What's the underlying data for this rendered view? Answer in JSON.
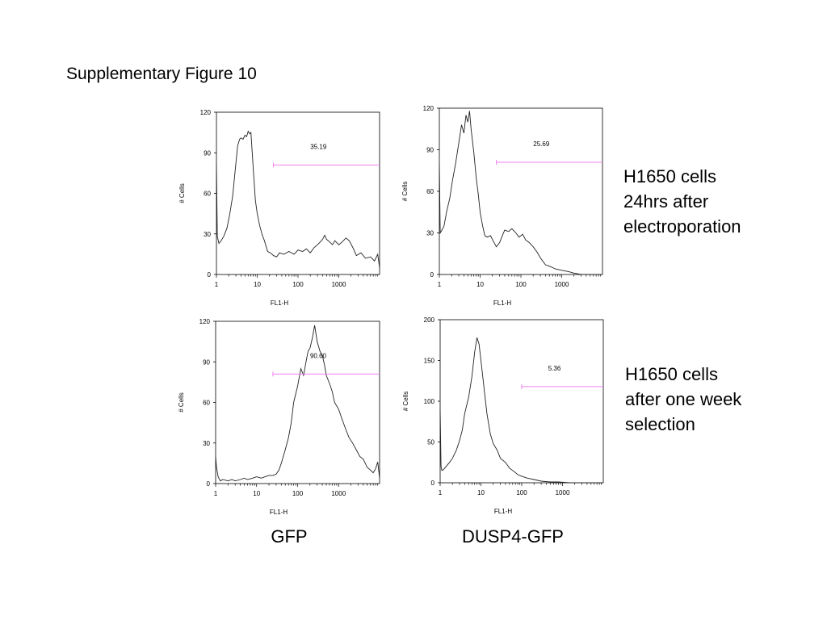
{
  "figure_title": "Supplementary Figure 10",
  "row_labels": [
    [
      "H1650 cells",
      "24hrs after",
      "electroporation"
    ],
    [
      "H1650 cells",
      "after one week",
      "selection"
    ]
  ],
  "column_labels": [
    "GFP",
    "DUSP4-GFP"
  ],
  "colors": {
    "line": "#222222",
    "gate": "#f080f0",
    "frame": "#000000"
  },
  "chart_data": [
    {
      "type": "line",
      "panel": "GFP, 24hrs after electroporation",
      "xlabel": "FL1-H",
      "ylabel": "# Cells",
      "xscale": "log",
      "xlim": [
        1,
        10000
      ],
      "ylim": [
        0,
        120
      ],
      "xticks": [
        1,
        10,
        100,
        1000
      ],
      "yticks": [
        0,
        30,
        60,
        90,
        120
      ],
      "gate": {
        "label": "35.19",
        "x_range": [
          25,
          10000
        ],
        "y": 81
      },
      "x": [
        1,
        1.05,
        1.15,
        1.3,
        1.5,
        1.8,
        2.1,
        2.5,
        2.9,
        3.3,
        3.7,
        4,
        4.5,
        5,
        5.5,
        6,
        6.5,
        7,
        8,
        9,
        10,
        11.5,
        13,
        15,
        18,
        21,
        25,
        30,
        35,
        45,
        60,
        80,
        100,
        130,
        160,
        200,
        250,
        300,
        350,
        400,
        450,
        500,
        600,
        700,
        800,
        1000,
        1200,
        1500,
        1800,
        2200,
        2700,
        3500,
        4500,
        6000,
        7500,
        9000,
        10000
      ],
      "y": [
        82,
        28,
        23,
        25,
        28,
        34,
        44,
        58,
        78,
        95,
        100,
        101,
        100,
        103,
        102,
        106,
        104,
        105,
        78,
        55,
        45,
        36,
        30,
        25,
        17,
        16,
        14,
        13,
        16,
        15,
        17,
        15,
        18,
        17,
        19,
        16,
        20,
        22,
        24,
        26,
        29,
        26,
        24,
        22,
        25,
        22,
        24,
        27,
        25,
        20,
        14,
        16,
        12,
        13,
        10,
        15,
        5
      ]
    },
    {
      "type": "line",
      "panel": "DUSP4-GFP, 24hrs after electroporation",
      "xlabel": "FL1-H",
      "ylabel": "# Cells",
      "xscale": "log",
      "xlim": [
        1,
        10000
      ],
      "ylim": [
        0,
        120
      ],
      "xticks": [
        1,
        10,
        100,
        1000
      ],
      "yticks": [
        0,
        30,
        60,
        90,
        120
      ],
      "gate": {
        "label": "25.69",
        "x_range": [
          25,
          10000
        ],
        "y": 81
      },
      "x": [
        1,
        1.05,
        1.15,
        1.3,
        1.5,
        1.8,
        2.1,
        2.5,
        3,
        3.5,
        4,
        4.5,
        5,
        5.5,
        6,
        7,
        8,
        9,
        10,
        11.5,
        13,
        15,
        18,
        21,
        25,
        30,
        35,
        40,
        50,
        60,
        75,
        90,
        110,
        130,
        160,
        200,
        250,
        300,
        400,
        500,
        700,
        1000,
        1500,
        2000,
        3000,
        4000,
        5000,
        7000,
        10000
      ],
      "y": [
        80,
        30,
        32,
        35,
        45,
        55,
        68,
        80,
        95,
        108,
        102,
        115,
        110,
        118,
        105,
        88,
        70,
        58,
        45,
        35,
        28,
        27,
        28,
        24,
        20,
        23,
        28,
        32,
        31,
        33,
        30,
        27,
        29,
        25,
        23,
        20,
        16,
        12,
        7,
        6,
        4,
        3,
        2,
        1,
        0,
        0,
        0,
        0,
        0
      ]
    },
    {
      "type": "line",
      "panel": "GFP, after one week selection",
      "xlabel": "FL1-H",
      "ylabel": "# Cells",
      "xscale": "log",
      "xlim": [
        1,
        10000
      ],
      "ylim": [
        0,
        120
      ],
      "xticks": [
        1,
        10,
        100,
        1000
      ],
      "yticks": [
        0,
        30,
        60,
        90,
        120
      ],
      "gate": {
        "label": "90.60",
        "x_range": [
          25,
          10000
        ],
        "y": 81
      },
      "x": [
        1,
        1.05,
        1.15,
        1.3,
        1.5,
        2,
        2.5,
        3,
        4,
        5,
        6,
        8,
        10,
        13,
        16,
        20,
        25,
        30,
        35,
        40,
        50,
        60,
        70,
        80,
        100,
        120,
        140,
        160,
        180,
        200,
        230,
        260,
        300,
        350,
        400,
        450,
        500,
        600,
        700,
        800,
        1000,
        1200,
        1500,
        1800,
        2200,
        2700,
        3300,
        4000,
        5000,
        6000,
        7000,
        8000,
        9000,
        10000
      ],
      "y": [
        20,
        12,
        5,
        2,
        3,
        2,
        3,
        2,
        3,
        4,
        3,
        4,
        5,
        4,
        5,
        6,
        6,
        7,
        10,
        15,
        25,
        34,
        45,
        60,
        72,
        85,
        80,
        90,
        98,
        100,
        108,
        117,
        105,
        98,
        95,
        88,
        80,
        74,
        68,
        60,
        55,
        48,
        40,
        34,
        30,
        25,
        20,
        18,
        12,
        10,
        8,
        11,
        16,
        4
      ]
    },
    {
      "type": "line",
      "panel": "DUSP4-GFP, after one week selection",
      "xlabel": "FL1-H",
      "ylabel": "# Cells",
      "xscale": "log",
      "xlim": [
        1,
        10000
      ],
      "ylim": [
        0,
        200
      ],
      "xticks": [
        1,
        10,
        100,
        1000
      ],
      "yticks": [
        0,
        50,
        100,
        150,
        200
      ],
      "gate": {
        "label": "5.36",
        "x_range": [
          100,
          10000
        ],
        "y": 118
      },
      "x": [
        1,
        1.05,
        1.1,
        1.2,
        1.4,
        1.7,
        2,
        2.5,
        3,
        3.5,
        4,
        5,
        6,
        7,
        8,
        9,
        10,
        12,
        14,
        17,
        20,
        25,
        30,
        40,
        50,
        60,
        80,
        100,
        130,
        160,
        200,
        300,
        500,
        800,
        1500,
        3000,
        10000
      ],
      "y": [
        90,
        20,
        15,
        16,
        20,
        25,
        30,
        40,
        52,
        65,
        85,
        105,
        130,
        160,
        178,
        170,
        150,
        115,
        85,
        60,
        48,
        40,
        30,
        25,
        18,
        15,
        10,
        8,
        6,
        5,
        4,
        2,
        1,
        1,
        0,
        0,
        0
      ]
    }
  ]
}
